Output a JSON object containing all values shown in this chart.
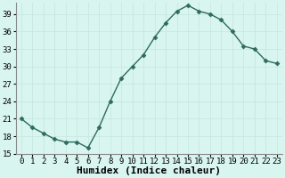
{
  "x": [
    0,
    1,
    2,
    3,
    4,
    5,
    6,
    7,
    8,
    9,
    10,
    11,
    12,
    13,
    14,
    15,
    16,
    17,
    18,
    19,
    20,
    21,
    22,
    23
  ],
  "y": [
    21,
    19.5,
    18.5,
    17.5,
    17,
    17,
    16,
    19.5,
    24,
    28,
    30,
    32,
    35,
    37.5,
    39.5,
    40.5,
    39.5,
    39,
    38,
    36,
    33.5,
    33,
    31,
    30.5
  ],
  "line_color": "#2e6b5e",
  "marker": "D",
  "marker_size": 2.5,
  "background_color": "#d8f5f0",
  "grid_color": "#c8e8e0",
  "xlabel": "Humidex (Indice chaleur)",
  "xlabel_fontsize": 8,
  "ylim": [
    15,
    41
  ],
  "yticks": [
    15,
    18,
    21,
    24,
    27,
    30,
    33,
    36,
    39
  ],
  "xlim": [
    -0.5,
    23.5
  ],
  "xticks": [
    0,
    1,
    2,
    3,
    4,
    5,
    6,
    7,
    8,
    9,
    10,
    11,
    12,
    13,
    14,
    15,
    16,
    17,
    18,
    19,
    20,
    21,
    22,
    23
  ],
  "tick_fontsize": 6.5,
  "line_width": 1.0
}
